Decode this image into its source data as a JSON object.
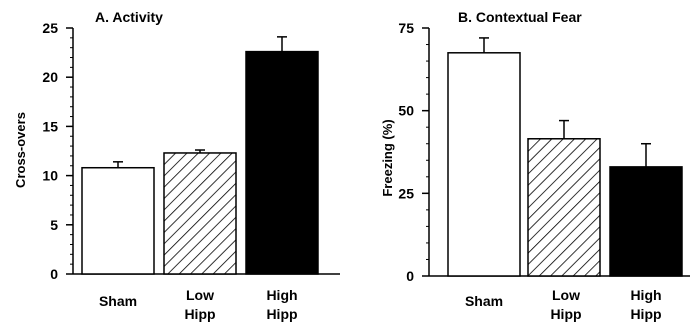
{
  "chart_data": [
    {
      "type": "bar",
      "title": "A. Activity",
      "xlabel": "",
      "ylabel": "Cross-overs",
      "ylim": [
        0,
        25
      ],
      "yticks": [
        "0",
        "5",
        "10",
        "15",
        "20",
        "25"
      ],
      "categories": [
        {
          "lines": [
            "Sham"
          ]
        },
        {
          "lines": [
            "Low",
            "Hipp"
          ]
        },
        {
          "lines": [
            "High",
            "Hipp"
          ]
        }
      ],
      "values": [
        10.8,
        12.3,
        22.6
      ],
      "errors": [
        0.6,
        0.3,
        1.5
      ],
      "fills": [
        "white",
        "hatched",
        "black"
      ]
    },
    {
      "type": "bar",
      "title": "B. Contextual Fear",
      "xlabel": "",
      "ylabel": "Freezing (%)",
      "ylim": [
        0,
        75
      ],
      "yticks": [
        "0",
        "25",
        "50",
        "75"
      ],
      "categories": [
        {
          "lines": [
            "Sham"
          ]
        },
        {
          "lines": [
            "Low",
            "Hipp"
          ]
        },
        {
          "lines": [
            "High",
            "Hipp"
          ]
        }
      ],
      "values": [
        67.5,
        41.5,
        33.0
      ],
      "errors": [
        4.5,
        5.5,
        7.0
      ],
      "fills": [
        "white",
        "hatched",
        "black"
      ]
    }
  ]
}
